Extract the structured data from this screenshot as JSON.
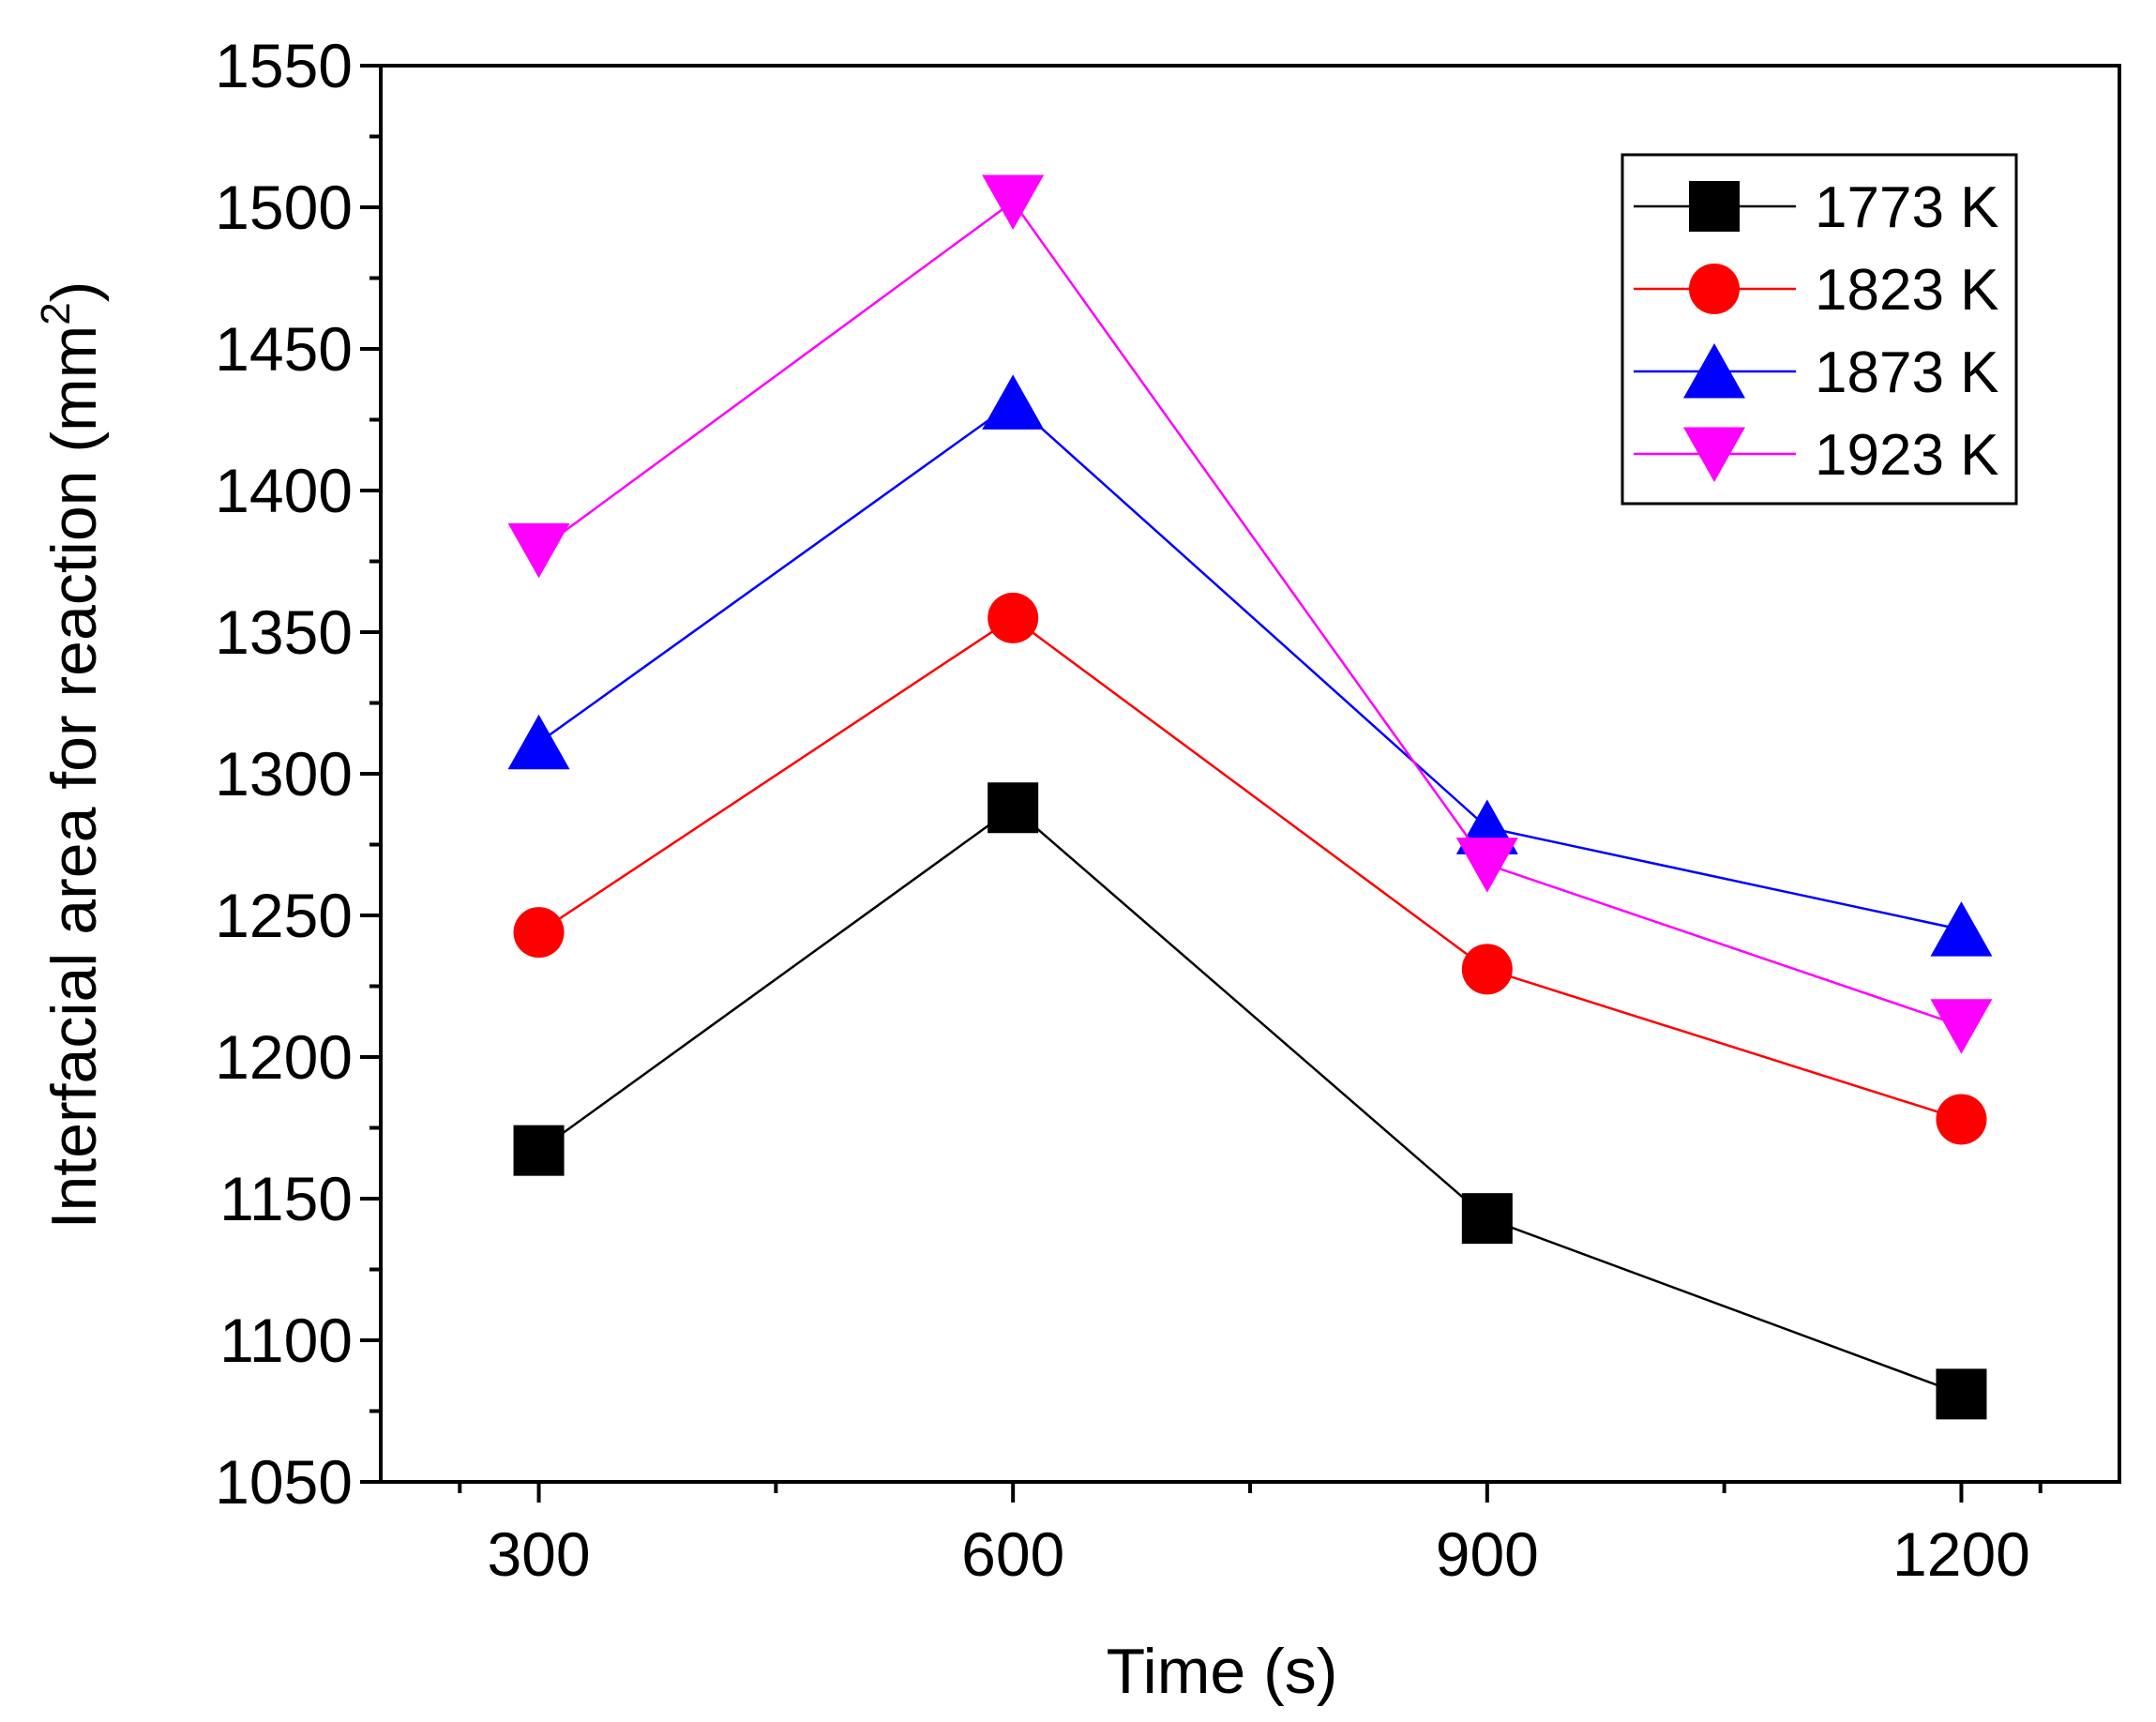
{
  "chart_data": {
    "type": "line",
    "title": "",
    "xlabel": "Time (s)",
    "ylabel_main": "Interfacial area for reaction (mm",
    "ylabel_sup": "2",
    "ylabel_end": ")",
    "x": [
      300,
      600,
      900,
      1200
    ],
    "x_ticks": [
      "300",
      "600",
      "900",
      "1200"
    ],
    "xlim": [
      200,
      1300
    ],
    "ylim": [
      1050,
      1550
    ],
    "y_ticks": [
      "1050",
      "1100",
      "1150",
      "1200",
      "1250",
      "1300",
      "1350",
      "1400",
      "1450",
      "1500",
      "1550"
    ],
    "y_minor_step": 25,
    "grid": false,
    "legend_position": "top-right",
    "series": [
      {
        "name": "1773 K",
        "color": "#000000",
        "marker": "square",
        "values": [
          1167,
          1288,
          1143,
          1081
        ]
      },
      {
        "name": "1823 K",
        "color": "#ff0000",
        "marker": "circle",
        "values": [
          1244,
          1355,
          1231,
          1178
        ]
      },
      {
        "name": "1873 K",
        "color": "#0000ff",
        "marker": "triangle-up",
        "values": [
          1311,
          1431,
          1281,
          1245
        ]
      },
      {
        "name": "1923 K",
        "color": "#ff00ff",
        "marker": "triangle-down",
        "values": [
          1379,
          1502,
          1268,
          1211
        ]
      }
    ]
  }
}
